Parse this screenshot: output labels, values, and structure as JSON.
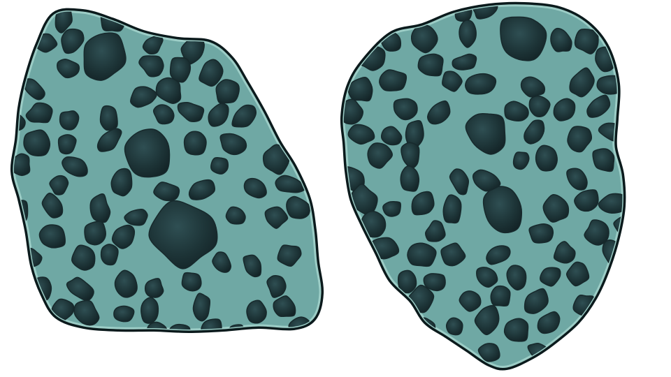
{
  "sprites": [
    {
      "id": "rock-left",
      "icon": "cellular-rock-sprite"
    },
    {
      "id": "rock-right",
      "icon": "cellular-rock-sprite"
    }
  ],
  "colors": {
    "background": "#ffffff",
    "outline": "#0b1a1c",
    "rock_base": "#6fa8a4",
    "rock_highlight": "#9ccdc6",
    "cell_dark": "#17292c",
    "cell_mid": "#223c40",
    "cell_light": "#2d4b4f"
  }
}
